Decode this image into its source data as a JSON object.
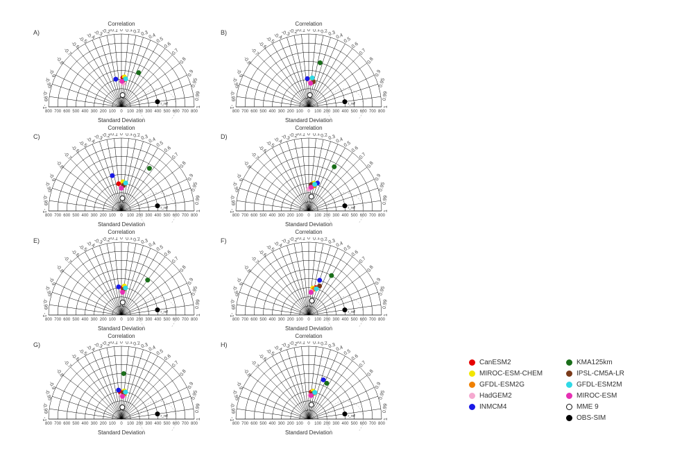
{
  "figure": {
    "background_color": "#ffffff",
    "title_corr": "Correlation",
    "title_sd": "Standard Deviation",
    "title_fontsize": 8,
    "axis_fontsize": 6,
    "corr_ticks": [
      -1,
      -0.99,
      -0.95,
      -0.9,
      -0.8,
      -0.7,
      -0.6,
      -0.5,
      -0.4,
      -0.3,
      -0.2,
      -0.1,
      0,
      0.1,
      0.2,
      0.3,
      0.4,
      0.5,
      0.6,
      0.7,
      0.8,
      0.9,
      0.95,
      0.99,
      1
    ],
    "corr_tick_labels_neg": [
      "-1",
      "-0.99",
      "-0.95",
      "-0.9",
      "-0.8",
      "-0.7",
      "-0.6",
      "-0.5",
      "-0.4",
      "-0.3",
      "-0.2",
      "-0.1"
    ],
    "corr_tick_labels_pos": [
      "0",
      "0.1",
      "0.2",
      "0.3",
      "0.4",
      "0.5",
      "0.6",
      "0.7",
      "0.8",
      "0.9",
      "0.95",
      "0.99",
      "1"
    ],
    "sd_ticks": [
      -800,
      -700,
      -600,
      -500,
      -400,
      -300,
      -200,
      -100,
      0,
      100,
      200,
      300,
      400,
      500,
      600,
      700,
      800
    ],
    "sd_max": 800,
    "sd_step": 100,
    "ref_sd": 400,
    "line_color": "#000000",
    "line_width": 0.5,
    "marker_radius": 3.5
  },
  "models": {
    "CanESM2": {
      "color": "#e60000"
    },
    "MIROC-ESM-CHEM": {
      "color": "#f2e600"
    },
    "GFDL-ESM2G": {
      "color": "#f08000"
    },
    "HadGEM2": {
      "color": "#f5a9d0"
    },
    "INMCM4": {
      "color": "#1a1ae6"
    },
    "KMA125km": {
      "color": "#1a6e1a"
    },
    "IPSL-CM5A-LR": {
      "color": "#7a3a1a"
    },
    "GFDL-ESM2M": {
      "color": "#30d9e6"
    },
    "MIROC-ESM": {
      "color": "#e630b3"
    },
    "MME 9": {
      "ring": true
    },
    "OBS-SIM": {
      "color": "#000000"
    }
  },
  "legend_order_left": [
    "CanESM2",
    "MIROC-ESM-CHEM",
    "GFDL-ESM2G",
    "HadGEM2",
    "INMCM4"
  ],
  "legend_order_right": [
    "KMA125km",
    "IPSL-CM5A-LR",
    "GFDL-ESM2M",
    "MIROC-ESM",
    "MME 9",
    "OBS-SIM"
  ],
  "panels": [
    {
      "label": "A)",
      "points": [
        {
          "m": "CanESM2",
          "corr": 0.05,
          "sd": 320
        },
        {
          "m": "MIROC-ESM-CHEM",
          "corr": 0.1,
          "sd": 330
        },
        {
          "m": "GFDL-ESM2G",
          "corr": 0.12,
          "sd": 300
        },
        {
          "m": "HadGEM2",
          "corr": 0.08,
          "sd": 260
        },
        {
          "m": "INMCM4",
          "corr": -0.2,
          "sd": 310
        },
        {
          "m": "KMA125km",
          "corr": 0.45,
          "sd": 420
        },
        {
          "m": "IPSL-CM5A-LR",
          "corr": 0.05,
          "sd": 290
        },
        {
          "m": "GFDL-ESM2M",
          "corr": 0.15,
          "sd": 310
        },
        {
          "m": "MIROC-ESM",
          "corr": 0.02,
          "sd": 280
        },
        {
          "m": "MME 9",
          "corr": 0.1,
          "sd": 130
        },
        {
          "m": "OBS-SIM",
          "corr": 0.99,
          "sd": 400
        }
      ]
    },
    {
      "label": "B)",
      "points": [
        {
          "m": "CanESM2",
          "corr": 0.0,
          "sd": 300
        },
        {
          "m": "MIROC-ESM-CHEM",
          "corr": 0.1,
          "sd": 310
        },
        {
          "m": "GFDL-ESM2G",
          "corr": 0.15,
          "sd": 290
        },
        {
          "m": "HadGEM2",
          "corr": 0.05,
          "sd": 270
        },
        {
          "m": "INMCM4",
          "corr": -0.05,
          "sd": 310
        },
        {
          "m": "KMA125km",
          "corr": 0.25,
          "sd": 500
        },
        {
          "m": "IPSL-CM5A-LR",
          "corr": 0.18,
          "sd": 280
        },
        {
          "m": "GFDL-ESM2M",
          "corr": 0.12,
          "sd": 320
        },
        {
          "m": "MIROC-ESM",
          "corr": 0.08,
          "sd": 260
        },
        {
          "m": "MME 9",
          "corr": 0.1,
          "sd": 130
        },
        {
          "m": "OBS-SIM",
          "corr": 0.99,
          "sd": 400
        }
      ]
    },
    {
      "label": "C)",
      "points": [
        {
          "m": "CanESM2",
          "corr": -0.1,
          "sd": 300
        },
        {
          "m": "MIROC-ESM-CHEM",
          "corr": 0.05,
          "sd": 320
        },
        {
          "m": "GFDL-ESM2G",
          "corr": 0.1,
          "sd": 290
        },
        {
          "m": "HadGEM2",
          "corr": 0.0,
          "sd": 260
        },
        {
          "m": "INMCM4",
          "corr": -0.25,
          "sd": 400
        },
        {
          "m": "KMA125km",
          "corr": 0.55,
          "sd": 560
        },
        {
          "m": "IPSL-CM5A-LR",
          "corr": 0.08,
          "sd": 280
        },
        {
          "m": "GFDL-ESM2M",
          "corr": 0.15,
          "sd": 310
        },
        {
          "m": "MIROC-ESM",
          "corr": 0.0,
          "sd": 250
        },
        {
          "m": "MME 9",
          "corr": 0.08,
          "sd": 140
        },
        {
          "m": "OBS-SIM",
          "corr": 0.99,
          "sd": 400
        }
      ]
    },
    {
      "label": "D)",
      "points": [
        {
          "m": "CanESM2",
          "corr": 0.15,
          "sd": 300
        },
        {
          "m": "MIROC-ESM-CHEM",
          "corr": 0.18,
          "sd": 310
        },
        {
          "m": "GFDL-ESM2G",
          "corr": 0.2,
          "sd": 280
        },
        {
          "m": "HadGEM2",
          "corr": 0.0,
          "sd": 240
        },
        {
          "m": "INMCM4",
          "corr": 0.3,
          "sd": 320
        },
        {
          "m": "KMA125km",
          "corr": 0.5,
          "sd": 560
        },
        {
          "m": "IPSL-CM5A-LR",
          "corr": 0.1,
          "sd": 290
        },
        {
          "m": "GFDL-ESM2M",
          "corr": 0.22,
          "sd": 300
        },
        {
          "m": "MIROC-ESM",
          "corr": 0.1,
          "sd": 260
        },
        {
          "m": "MME 9",
          "corr": 0.18,
          "sd": 160
        },
        {
          "m": "OBS-SIM",
          "corr": 0.99,
          "sd": 400
        }
      ]
    },
    {
      "label": "E)",
      "points": [
        {
          "m": "CanESM2",
          "corr": 0.05,
          "sd": 300
        },
        {
          "m": "MIROC-ESM-CHEM",
          "corr": 0.1,
          "sd": 320
        },
        {
          "m": "GFDL-ESM2G",
          "corr": 0.12,
          "sd": 290
        },
        {
          "m": "HadGEM2",
          "corr": 0.02,
          "sd": 260
        },
        {
          "m": "INMCM4",
          "corr": -0.1,
          "sd": 310
        },
        {
          "m": "KMA125km",
          "corr": 0.6,
          "sd": 480
        },
        {
          "m": "IPSL-CM5A-LR",
          "corr": 0.08,
          "sd": 280
        },
        {
          "m": "GFDL-ESM2M",
          "corr": 0.15,
          "sd": 300
        },
        {
          "m": "MIROC-ESM",
          "corr": 0.05,
          "sd": 250
        },
        {
          "m": "MME 9",
          "corr": 0.1,
          "sd": 140
        },
        {
          "m": "OBS-SIM",
          "corr": 0.99,
          "sd": 400
        }
      ]
    },
    {
      "label": "F)",
      "points": [
        {
          "m": "CanESM2",
          "corr": 0.25,
          "sd": 310
        },
        {
          "m": "MIROC-ESM-CHEM",
          "corr": 0.15,
          "sd": 300
        },
        {
          "m": "GFDL-ESM2G",
          "corr": 0.2,
          "sd": 290
        },
        {
          "m": "HadGEM2",
          "corr": 0.1,
          "sd": 260
        },
        {
          "m": "INMCM4",
          "corr": 0.3,
          "sd": 400
        },
        {
          "m": "KMA125km",
          "corr": 0.5,
          "sd": 500
        },
        {
          "m": "IPSL-CM5A-LR",
          "corr": 0.35,
          "sd": 340
        },
        {
          "m": "GFDL-ESM2M",
          "corr": 0.28,
          "sd": 300
        },
        {
          "m": "MIROC-ESM",
          "corr": 0.1,
          "sd": 250
        },
        {
          "m": "MME 9",
          "corr": 0.22,
          "sd": 160
        },
        {
          "m": "OBS-SIM",
          "corr": 0.99,
          "sd": 400
        }
      ]
    },
    {
      "label": "G)",
      "points": [
        {
          "m": "CanESM2",
          "corr": -0.05,
          "sd": 300
        },
        {
          "m": "MIROC-ESM-CHEM",
          "corr": 0.1,
          "sd": 310
        },
        {
          "m": "GFDL-ESM2G",
          "corr": 0.12,
          "sd": 280
        },
        {
          "m": "HadGEM2",
          "corr": 0.0,
          "sd": 260
        },
        {
          "m": "INMCM4",
          "corr": -0.1,
          "sd": 320
        },
        {
          "m": "KMA125km",
          "corr": 0.05,
          "sd": 500
        },
        {
          "m": "IPSL-CM5A-LR",
          "corr": 0.08,
          "sd": 290
        },
        {
          "m": "GFDL-ESM2M",
          "corr": 0.15,
          "sd": 300
        },
        {
          "m": "MIROC-ESM",
          "corr": 0.05,
          "sd": 250
        },
        {
          "m": "MME 9",
          "corr": 0.08,
          "sd": 130
        },
        {
          "m": "OBS-SIM",
          "corr": 0.99,
          "sd": 400
        }
      ]
    },
    {
      "label": "H)",
      "points": [
        {
          "m": "CanESM2",
          "corr": 0.1,
          "sd": 300
        },
        {
          "m": "MIROC-ESM-CHEM",
          "corr": 0.15,
          "sd": 310
        },
        {
          "m": "GFDL-ESM2G",
          "corr": 0.2,
          "sd": 290
        },
        {
          "m": "HadGEM2",
          "corr": 0.05,
          "sd": 260
        },
        {
          "m": "INMCM4",
          "corr": 0.35,
          "sd": 460
        },
        {
          "m": "KMA125km",
          "corr": 0.45,
          "sd": 440
        },
        {
          "m": "IPSL-CM5A-LR",
          "corr": 0.12,
          "sd": 280
        },
        {
          "m": "GFDL-ESM2M",
          "corr": 0.22,
          "sd": 300
        },
        {
          "m": "MIROC-ESM",
          "corr": 0.1,
          "sd": 260
        },
        {
          "m": "MME 9",
          "corr": 0.18,
          "sd": 160
        },
        {
          "m": "OBS-SIM",
          "corr": 0.99,
          "sd": 400
        }
      ]
    }
  ]
}
